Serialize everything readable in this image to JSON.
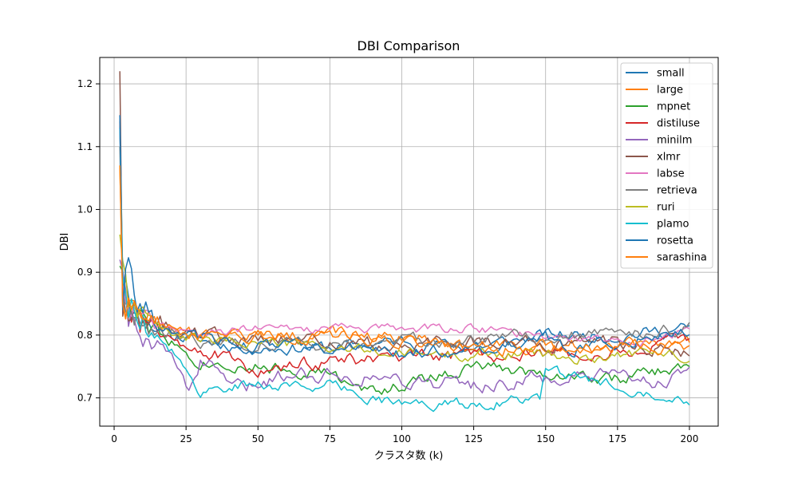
{
  "chart_data": {
    "type": "line",
    "title": "DBI Comparison",
    "xlabel": "クラスタ数 (k)",
    "ylabel": "DBI",
    "xlim": [
      -5,
      210
    ],
    "ylim": [
      0.655,
      1.242
    ],
    "xticks": [
      0,
      25,
      50,
      75,
      100,
      125,
      150,
      175,
      200
    ],
    "yticks": [
      0.7,
      0.8,
      0.9,
      1.0,
      1.1,
      1.2
    ],
    "xtick_labels": [
      "0",
      "25",
      "50",
      "75",
      "100",
      "125",
      "150",
      "175",
      "200"
    ],
    "ytick_labels": [
      "0.7",
      "0.8",
      "0.9",
      "1.0",
      "1.1",
      "1.2"
    ],
    "grid": true,
    "legend_position": "top-right",
    "series": [
      {
        "name": "small",
        "color": "#1f77b4",
        "keypoints": [
          [
            2,
            1.14
          ],
          [
            3,
            0.89
          ],
          [
            5,
            0.86
          ],
          [
            8,
            0.84
          ],
          [
            12,
            0.82
          ],
          [
            20,
            0.8
          ],
          [
            30,
            0.79
          ],
          [
            50,
            0.78
          ],
          [
            75,
            0.78
          ],
          [
            100,
            0.79
          ],
          [
            125,
            0.78
          ],
          [
            150,
            0.8
          ],
          [
            175,
            0.8
          ],
          [
            200,
            0.81
          ]
        ],
        "noise": 0.008,
        "seed": 11
      },
      {
        "name": "large",
        "color": "#ff7f0e",
        "keypoints": [
          [
            2,
            1.07
          ],
          [
            3,
            0.86
          ],
          [
            5,
            0.84
          ],
          [
            10,
            0.83
          ],
          [
            20,
            0.81
          ],
          [
            30,
            0.8
          ],
          [
            50,
            0.8
          ],
          [
            75,
            0.8
          ],
          [
            100,
            0.8
          ],
          [
            125,
            0.78
          ],
          [
            150,
            0.78
          ],
          [
            175,
            0.79
          ],
          [
            200,
            0.79
          ]
        ],
        "noise": 0.008,
        "seed": 22
      },
      {
        "name": "mpnet",
        "color": "#2ca02c",
        "keypoints": [
          [
            2,
            0.91
          ],
          [
            5,
            0.84
          ],
          [
            10,
            0.82
          ],
          [
            20,
            0.79
          ],
          [
            30,
            0.76
          ],
          [
            50,
            0.75
          ],
          [
            75,
            0.74
          ],
          [
            85,
            0.71
          ],
          [
            100,
            0.72
          ],
          [
            125,
            0.75
          ],
          [
            150,
            0.74
          ],
          [
            175,
            0.73
          ],
          [
            200,
            0.75
          ]
        ],
        "noise": 0.008,
        "seed": 33
      },
      {
        "name": "distiluse",
        "color": "#d62728",
        "keypoints": [
          [
            2,
            1.15
          ],
          [
            3,
            0.86
          ],
          [
            5,
            0.83
          ],
          [
            10,
            0.82
          ],
          [
            20,
            0.8
          ],
          [
            30,
            0.78
          ],
          [
            50,
            0.74
          ],
          [
            75,
            0.76
          ],
          [
            100,
            0.76
          ],
          [
            125,
            0.77
          ],
          [
            150,
            0.77
          ],
          [
            175,
            0.77
          ],
          [
            200,
            0.79
          ]
        ],
        "noise": 0.009,
        "seed": 44
      },
      {
        "name": "minilm",
        "color": "#9467bd",
        "keypoints": [
          [
            2,
            0.92
          ],
          [
            5,
            0.85
          ],
          [
            10,
            0.8
          ],
          [
            20,
            0.76
          ],
          [
            26,
            0.72
          ],
          [
            30,
            0.76
          ],
          [
            45,
            0.71
          ],
          [
            60,
            0.74
          ],
          [
            75,
            0.74
          ],
          [
            100,
            0.73
          ],
          [
            125,
            0.72
          ],
          [
            150,
            0.73
          ],
          [
            175,
            0.73
          ],
          [
            200,
            0.73
          ]
        ],
        "noise": 0.01,
        "seed": 55
      },
      {
        "name": "xlmr",
        "color": "#8c564b",
        "keypoints": [
          [
            2,
            1.22
          ],
          [
            3,
            0.86
          ],
          [
            5,
            0.84
          ],
          [
            10,
            0.83
          ],
          [
            20,
            0.81
          ],
          [
            30,
            0.8
          ],
          [
            50,
            0.79
          ],
          [
            75,
            0.79
          ],
          [
            100,
            0.78
          ],
          [
            125,
            0.79
          ],
          [
            150,
            0.79
          ],
          [
            175,
            0.79
          ],
          [
            200,
            0.77
          ]
        ],
        "noise": 0.009,
        "seed": 66
      },
      {
        "name": "labse",
        "color": "#e377c2",
        "keypoints": [
          [
            2,
            1.13
          ],
          [
            3,
            0.88
          ],
          [
            5,
            0.85
          ],
          [
            10,
            0.83
          ],
          [
            20,
            0.81
          ],
          [
            30,
            0.8
          ],
          [
            50,
            0.81
          ],
          [
            75,
            0.81
          ],
          [
            100,
            0.81
          ],
          [
            125,
            0.81
          ],
          [
            150,
            0.8
          ],
          [
            175,
            0.79
          ],
          [
            200,
            0.8
          ]
        ],
        "noise": 0.006,
        "seed": 77
      },
      {
        "name": "retrieva",
        "color": "#7f7f7f",
        "keypoints": [
          [
            2,
            1.1
          ],
          [
            3,
            0.86
          ],
          [
            5,
            0.85
          ],
          [
            10,
            0.82
          ],
          [
            20,
            0.8
          ],
          [
            30,
            0.79
          ],
          [
            50,
            0.79
          ],
          [
            75,
            0.78
          ],
          [
            100,
            0.79
          ],
          [
            125,
            0.79
          ],
          [
            150,
            0.8
          ],
          [
            175,
            0.8
          ],
          [
            200,
            0.81
          ]
        ],
        "noise": 0.008,
        "seed": 88
      },
      {
        "name": "ruri",
        "color": "#bcbd22",
        "keypoints": [
          [
            2,
            0.96
          ],
          [
            5,
            0.86
          ],
          [
            10,
            0.83
          ],
          [
            20,
            0.8
          ],
          [
            30,
            0.79
          ],
          [
            50,
            0.79
          ],
          [
            75,
            0.78
          ],
          [
            100,
            0.77
          ],
          [
            125,
            0.77
          ],
          [
            150,
            0.77
          ],
          [
            160,
            0.76
          ],
          [
            175,
            0.77
          ],
          [
            200,
            0.77
          ]
        ],
        "noise": 0.007,
        "seed": 99
      },
      {
        "name": "plamo",
        "color": "#17becf",
        "keypoints": [
          [
            2,
            1.13
          ],
          [
            3,
            0.88
          ],
          [
            5,
            0.84
          ],
          [
            10,
            0.82
          ],
          [
            20,
            0.78
          ],
          [
            26,
            0.73
          ],
          [
            30,
            0.71
          ],
          [
            40,
            0.72
          ],
          [
            50,
            0.72
          ],
          [
            75,
            0.72
          ],
          [
            100,
            0.69
          ],
          [
            125,
            0.69
          ],
          [
            148,
            0.7
          ],
          [
            150,
            0.74
          ],
          [
            175,
            0.72
          ],
          [
            200,
            0.7
          ]
        ],
        "noise": 0.007,
        "seed": 111
      },
      {
        "name": "rosetta",
        "color": "#1f77b4",
        "keypoints": [
          [
            2,
            1.15
          ],
          [
            3,
            0.86
          ],
          [
            5,
            0.92
          ],
          [
            8,
            0.85
          ],
          [
            15,
            0.82
          ],
          [
            25,
            0.8
          ],
          [
            40,
            0.79
          ],
          [
            60,
            0.78
          ],
          [
            80,
            0.78
          ],
          [
            100,
            0.77
          ],
          [
            125,
            0.78
          ],
          [
            150,
            0.79
          ],
          [
            160,
            0.78
          ],
          [
            175,
            0.79
          ],
          [
            200,
            0.81
          ]
        ],
        "noise": 0.008,
        "seed": 122
      },
      {
        "name": "sarashina",
        "color": "#ff7f0e",
        "keypoints": [
          [
            2,
            1.07
          ],
          [
            3,
            0.84
          ],
          [
            5,
            0.86
          ],
          [
            10,
            0.84
          ],
          [
            20,
            0.81
          ],
          [
            30,
            0.8
          ],
          [
            50,
            0.8
          ],
          [
            75,
            0.8
          ],
          [
            100,
            0.79
          ],
          [
            125,
            0.78
          ],
          [
            150,
            0.78
          ],
          [
            175,
            0.78
          ],
          [
            200,
            0.78
          ]
        ],
        "noise": 0.008,
        "seed": 133
      }
    ]
  }
}
